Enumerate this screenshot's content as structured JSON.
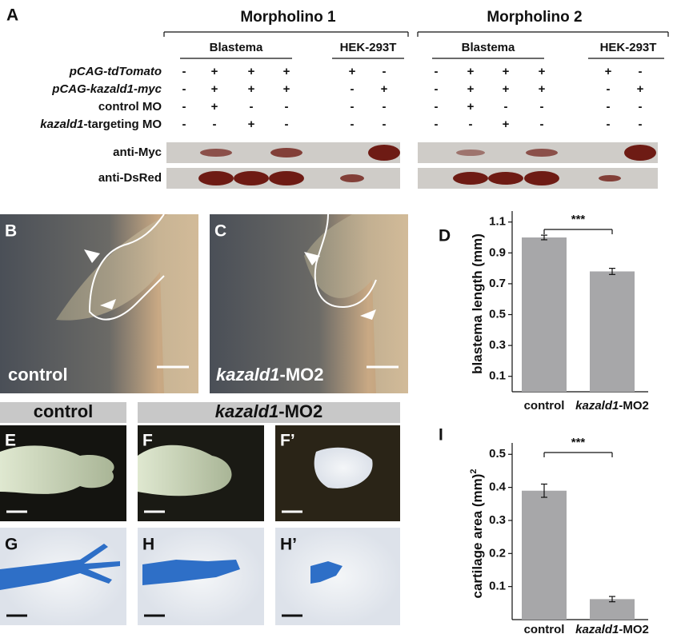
{
  "panel_a": {
    "label": "A",
    "groups": [
      {
        "title": "Morpholino 1",
        "subgroups": [
          "Blastema",
          "HEK-293T"
        ]
      },
      {
        "title": "Morpholino 2",
        "subgroups": [
          "Blastema",
          "HEK-293T"
        ]
      }
    ],
    "rows": [
      {
        "label": {
          "italic": "pCAG-tdTomato"
        },
        "signs": [
          "-",
          "+",
          "+",
          "+",
          "+",
          "-"
        ]
      },
      {
        "label": {
          "italic": "pCAG-kazald1-myc"
        },
        "signs": [
          "-",
          "+",
          "+",
          "+",
          "-",
          "+"
        ]
      },
      {
        "label": {
          "text": "control MO"
        },
        "signs": [
          "-",
          "+",
          "-",
          "-",
          "-",
          "-"
        ]
      },
      {
        "label": {
          "italic": "kazald1",
          "text": "-targeting MO"
        },
        "signs": [
          "-",
          "-",
          "+",
          "-",
          "-",
          "-"
        ]
      }
    ],
    "blots": [
      "anti-Myc",
      "anti-DsRed"
    ]
  },
  "panel_b": {
    "label": "B",
    "caption": {
      "text": "control"
    }
  },
  "panel_c": {
    "label": "C",
    "caption": {
      "italic": "kazald1",
      "text": "-MO2"
    }
  },
  "panel_efgh": {
    "headers": [
      {
        "text": "control"
      },
      {
        "italic": "kazald1",
        "text": "-MO2"
      }
    ],
    "labels": [
      "E",
      "F",
      "F’",
      "G",
      "H",
      "H’"
    ]
  },
  "chart_data": [
    {
      "type": "bar",
      "label": "D",
      "ylabel": {
        "text": "blastema length (mm)"
      },
      "categories": [
        {
          "text": "control"
        },
        {
          "italic": "kazald1",
          "text": "-MO2"
        }
      ],
      "values": [
        1.0,
        0.78
      ],
      "errors": [
        0.015,
        0.02
      ],
      "color": "#a7a7a9",
      "ylim": [
        0,
        1.14
      ],
      "yticks": [
        0.1,
        0.3,
        0.5,
        0.7,
        0.9,
        1.1
      ],
      "significance": "***"
    },
    {
      "type": "bar",
      "label": "I",
      "ylabel": {
        "text": "cartilage area (mm)",
        "sup": "2"
      },
      "categories": [
        {
          "text": "control"
        },
        {
          "italic": "kazald1",
          "text": "-MO2"
        }
      ],
      "values": [
        0.39,
        0.062
      ],
      "errors": [
        0.02,
        0.008
      ],
      "color": "#a7a7a9",
      "ylim": [
        0,
        0.52
      ],
      "yticks": [
        0.1,
        0.2,
        0.3,
        0.4,
        0.5
      ],
      "significance": "***"
    }
  ]
}
